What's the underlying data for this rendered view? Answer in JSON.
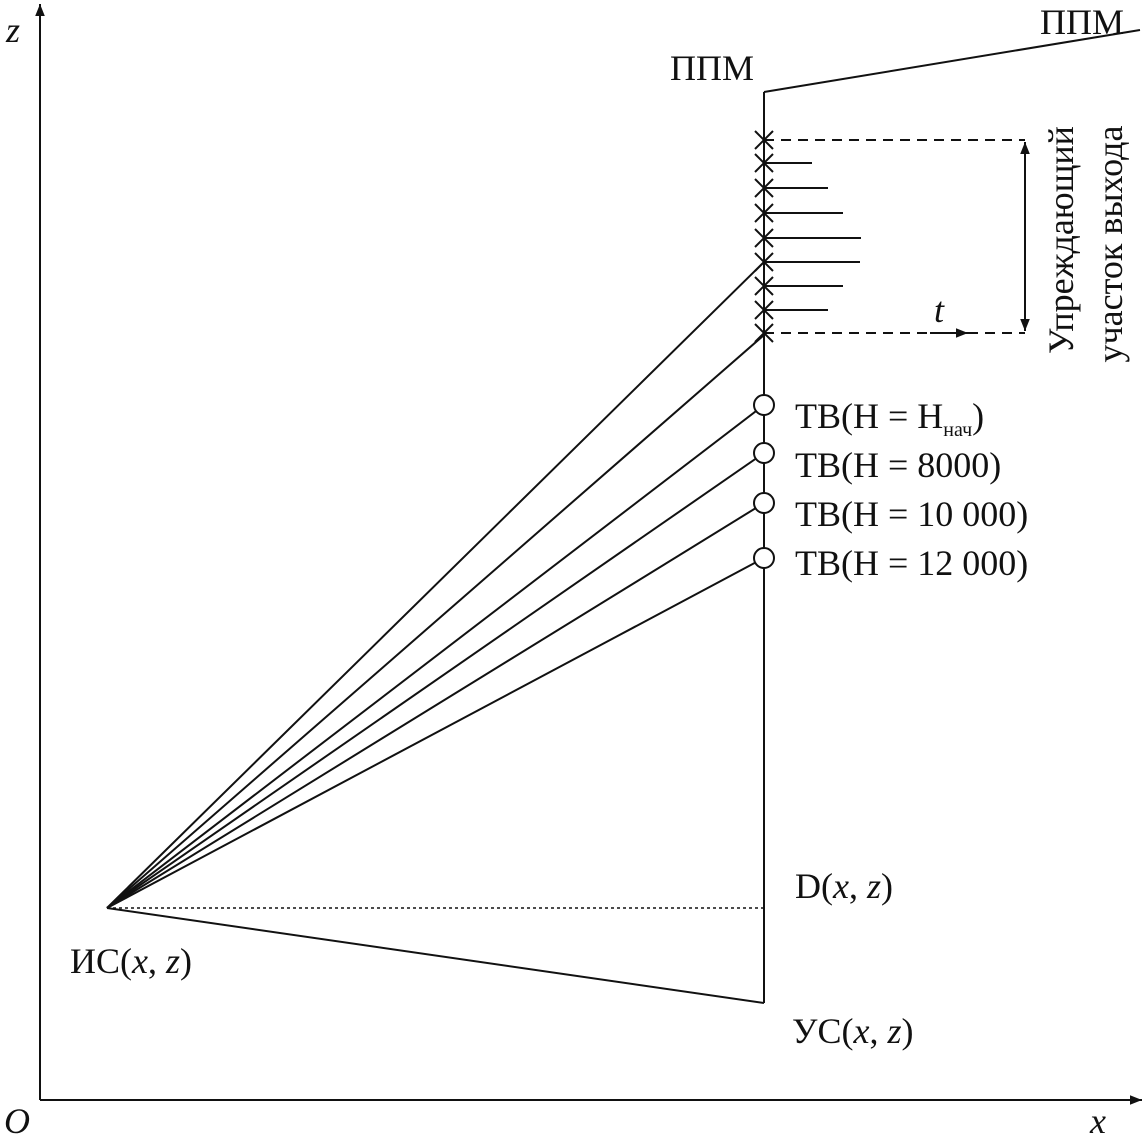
{
  "axes": {
    "z_label": "z",
    "origin_label": "O",
    "x_label": "x"
  },
  "labels": {
    "ppm_top": "ППМ",
    "ppm_vertical": "ППМ",
    "lead_section": [
      "Упреждающий",
      "участок выхода"
    ],
    "t": "t",
    "tv_start": [
      "ТВ(Н = Н",
      "нач",
      ")"
    ],
    "tv_8000": "ТВ(Н = 8000)",
    "tv_10000": "ТВ(Н = 10 000)",
    "tv_12000": "ТВ(Н = 12 000)",
    "d_point": [
      "D(",
      "x",
      ", ",
      "z",
      ")"
    ],
    "is_point": [
      "ИС(",
      "x",
      ", ",
      "z",
      ")"
    ],
    "us_point": [
      "УС(",
      "x",
      ", ",
      "z",
      ")"
    ]
  }
}
